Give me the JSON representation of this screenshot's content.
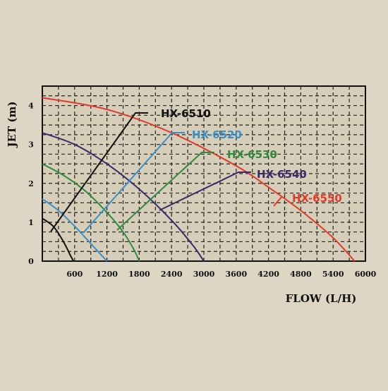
{
  "chart_data": {
    "type": "line",
    "xlabel": "FLOW (L/H)",
    "ylabel": "JET (m)",
    "xlim": [
      0,
      6000
    ],
    "ylim": [
      0,
      4.5
    ],
    "x_ticks": [
      "600",
      "1200",
      "1800",
      "2400",
      "3000",
      "3600",
      "4200",
      "4800",
      "5400",
      "6000"
    ],
    "y_ticks": [
      "0",
      "1",
      "2",
      "3",
      "4"
    ],
    "grid": true,
    "legend_placement": "callouts",
    "series": [
      {
        "name": "HX-6510",
        "color": "#111111",
        "x": [
          0,
          200,
          350,
          450,
          520,
          580
        ],
        "y": [
          1.1,
          0.9,
          0.6,
          0.35,
          0.15,
          0
        ]
      },
      {
        "name": "HX-6520",
        "color": "#3a8fc9",
        "x": [
          0,
          300,
          600,
          900,
          1100,
          1200
        ],
        "y": [
          1.6,
          1.3,
          0.9,
          0.45,
          0.15,
          0
        ]
      },
      {
        "name": "HX-6530",
        "color": "#2f8a3e",
        "x": [
          0,
          400,
          800,
          1200,
          1500,
          1700,
          1800
        ],
        "y": [
          2.5,
          2.2,
          1.8,
          1.25,
          0.75,
          0.3,
          0
        ]
      },
      {
        "name": "HX-6540",
        "color": "#3b2a6b",
        "x": [
          0,
          600,
          1200,
          1800,
          2400,
          2800,
          3000
        ],
        "y": [
          3.3,
          3.0,
          2.5,
          1.85,
          1.05,
          0.4,
          0
        ]
      },
      {
        "name": "HX-6550",
        "color": "#e03a2a",
        "x": [
          0,
          1200,
          2400,
          3600,
          4200,
          4800,
          5400,
          5800
        ],
        "y": [
          4.2,
          3.9,
          3.3,
          2.45,
          1.9,
          1.3,
          0.6,
          0
        ]
      }
    ]
  }
}
